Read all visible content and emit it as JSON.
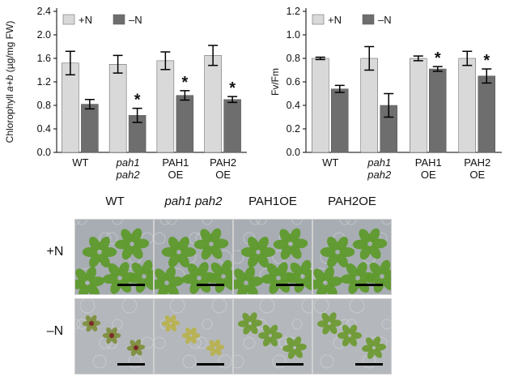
{
  "chart_data": [
    {
      "type": "bar",
      "panel": "chlorophyll",
      "ylabel_parts": [
        "Chlorophyll ",
        "a+b",
        " (µg/mg FW)"
      ],
      "yticks": [
        "0.0",
        "0.4",
        "0.8",
        "1.2",
        "1.6",
        "2.0",
        "2.4"
      ],
      "ylim": [
        0,
        2.4
      ],
      "categories": [
        [
          "WT"
        ],
        [
          "pah1",
          "pah2"
        ],
        [
          "PAH1",
          "OE"
        ],
        [
          "PAH2",
          "OE"
        ]
      ],
      "category_italic": [
        false,
        true,
        false,
        false
      ],
      "series": [
        {
          "name": "+N",
          "color": "#d9d9d9",
          "values": [
            1.52,
            1.5,
            1.56,
            1.65
          ],
          "errors": [
            0.2,
            0.15,
            0.15,
            0.17
          ]
        },
        {
          "name": "–N",
          "color": "#6e6e6e",
          "values": [
            0.82,
            0.63,
            0.97,
            0.9
          ],
          "errors": [
            0.08,
            0.12,
            0.08,
            0.05
          ]
        }
      ],
      "significance": [
        "",
        "*",
        "*",
        "*"
      ],
      "legend_position": "top-left"
    },
    {
      "type": "bar",
      "panel": "fvfm",
      "ylabel_parts": [
        "Fv/Fm"
      ],
      "yticks": [
        "0.0",
        "0.2",
        "0.4",
        "0.6",
        "0.8",
        "1.0",
        "1.2"
      ],
      "ylim": [
        0,
        1.2
      ],
      "categories": [
        [
          "WT"
        ],
        [
          "pah1",
          "pah2"
        ],
        [
          "PAH1",
          "OE"
        ],
        [
          "PAH2",
          "OE"
        ]
      ],
      "category_italic": [
        false,
        true,
        false,
        false
      ],
      "series": [
        {
          "name": "+N",
          "color": "#d9d9d9",
          "values": [
            0.8,
            0.8,
            0.8,
            0.8
          ],
          "errors": [
            0.01,
            0.1,
            0.02,
            0.06
          ]
        },
        {
          "name": "–N",
          "color": "#6e6e6e",
          "values": [
            0.54,
            0.4,
            0.71,
            0.65
          ],
          "errors": [
            0.03,
            0.1,
            0.02,
            0.06
          ]
        }
      ],
      "significance": [
        "",
        "",
        "*",
        "*"
      ],
      "legend_position": "top-left"
    }
  ],
  "photos": {
    "columns": [
      {
        "label": "WT",
        "italic": false
      },
      {
        "label": "pah1 pah2",
        "italic": true
      },
      {
        "label": "PAH1OE",
        "italic": false
      },
      {
        "label": "PAH2OE",
        "italic": false
      }
    ],
    "rows": [
      "+N",
      "–N"
    ]
  }
}
